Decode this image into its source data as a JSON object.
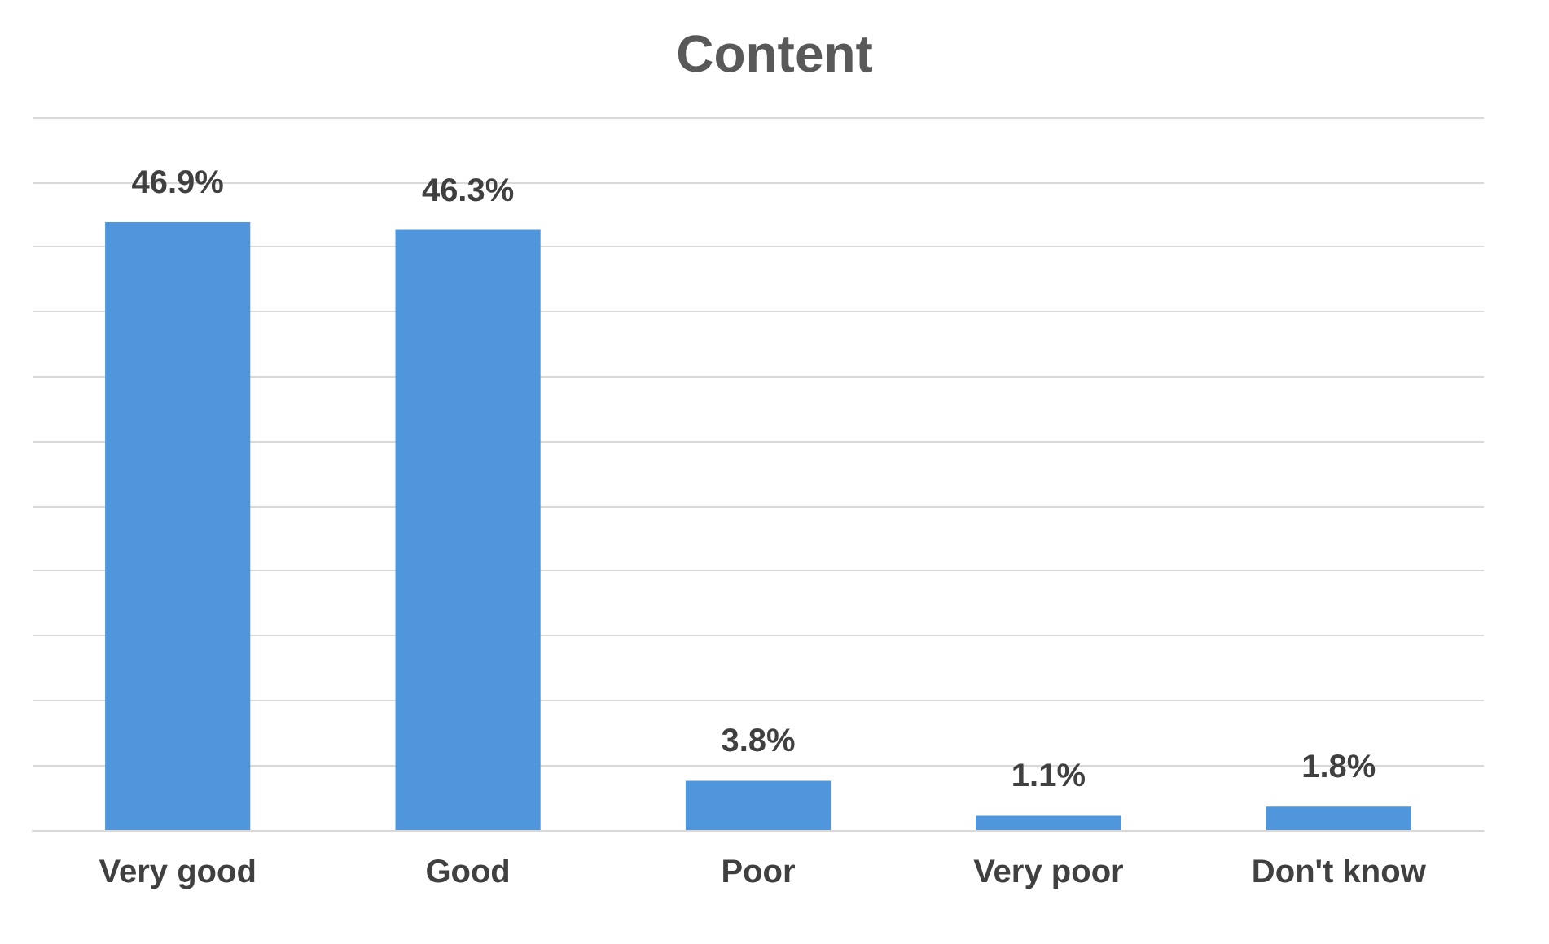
{
  "chart_data": {
    "type": "bar",
    "title": "Content",
    "categories": [
      "Very good",
      "Good",
      "Poor",
      "Very poor",
      "Don't know"
    ],
    "values": [
      46.9,
      46.3,
      3.8,
      1.1,
      1.8
    ],
    "value_labels": [
      "46.9%",
      "46.3%",
      "3.8%",
      "1.1%",
      "1.8%"
    ],
    "color": "#5096dc",
    "ylim": [
      0,
      55
    ],
    "yticks": [
      {
        "value": 0,
        "label": null
      },
      {
        "value": 5,
        "label": null
      },
      {
        "value": 10,
        "label": null
      },
      {
        "value": 15,
        "label": null
      },
      {
        "value": 20,
        "label": null
      },
      {
        "value": 25,
        "label": null
      },
      {
        "value": 30,
        "label": null
      },
      {
        "value": 35,
        "label": null
      },
      {
        "value": 40,
        "label": null
      },
      {
        "value": 45,
        "label": null
      },
      {
        "value": 50,
        "label": null
      },
      {
        "value": 55,
        "label": null
      }
    ],
    "grid": "y",
    "tick_labels": "x"
  }
}
